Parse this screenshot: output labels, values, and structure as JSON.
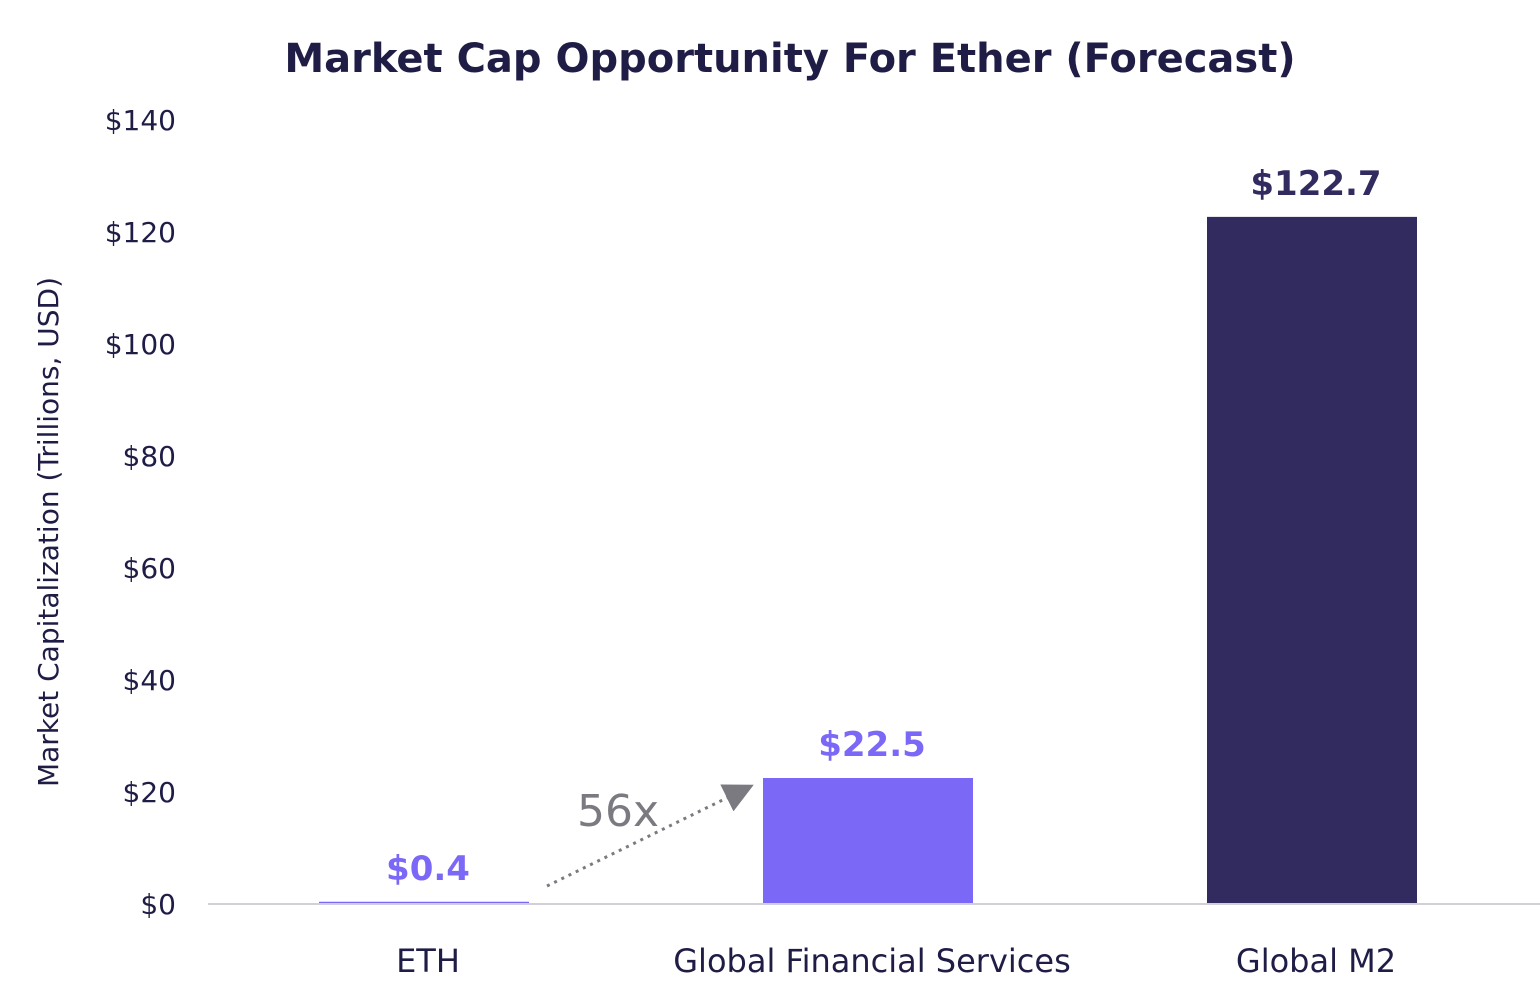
{
  "chart_data": {
    "type": "bar",
    "title": "Market Cap Opportunity For Ether (Forecast)",
    "ylabel": "Market Capitalization (Trillions, USD)",
    "xlabel": "",
    "categories": [
      "ETH",
      "Global Financial Services",
      "Global M2"
    ],
    "values": [
      0.4,
      22.5,
      122.7
    ],
    "data_labels": [
      "$0.4",
      "$22.5",
      "$122.7"
    ],
    "bar_colors": [
      "#7b68f6",
      "#7b68f6",
      "#312b60"
    ],
    "label_colors": [
      "#7b68f6",
      "#7b68f6",
      "#312b60"
    ],
    "ylim": [
      0,
      140
    ],
    "yticks": [
      0,
      20,
      40,
      60,
      80,
      100,
      120,
      140
    ],
    "ytick_labels": [
      "$0",
      "$20",
      "$40",
      "$60",
      "$80",
      "$100",
      "$120",
      "$140"
    ],
    "grid": false,
    "legend": "none",
    "annotation": {
      "text": "56x",
      "from_category": "ETH",
      "to_category": "Global Financial Services",
      "color": "#7a7a80"
    },
    "text_color": "#1f1d45",
    "axis_color": "#d0d0d8"
  }
}
